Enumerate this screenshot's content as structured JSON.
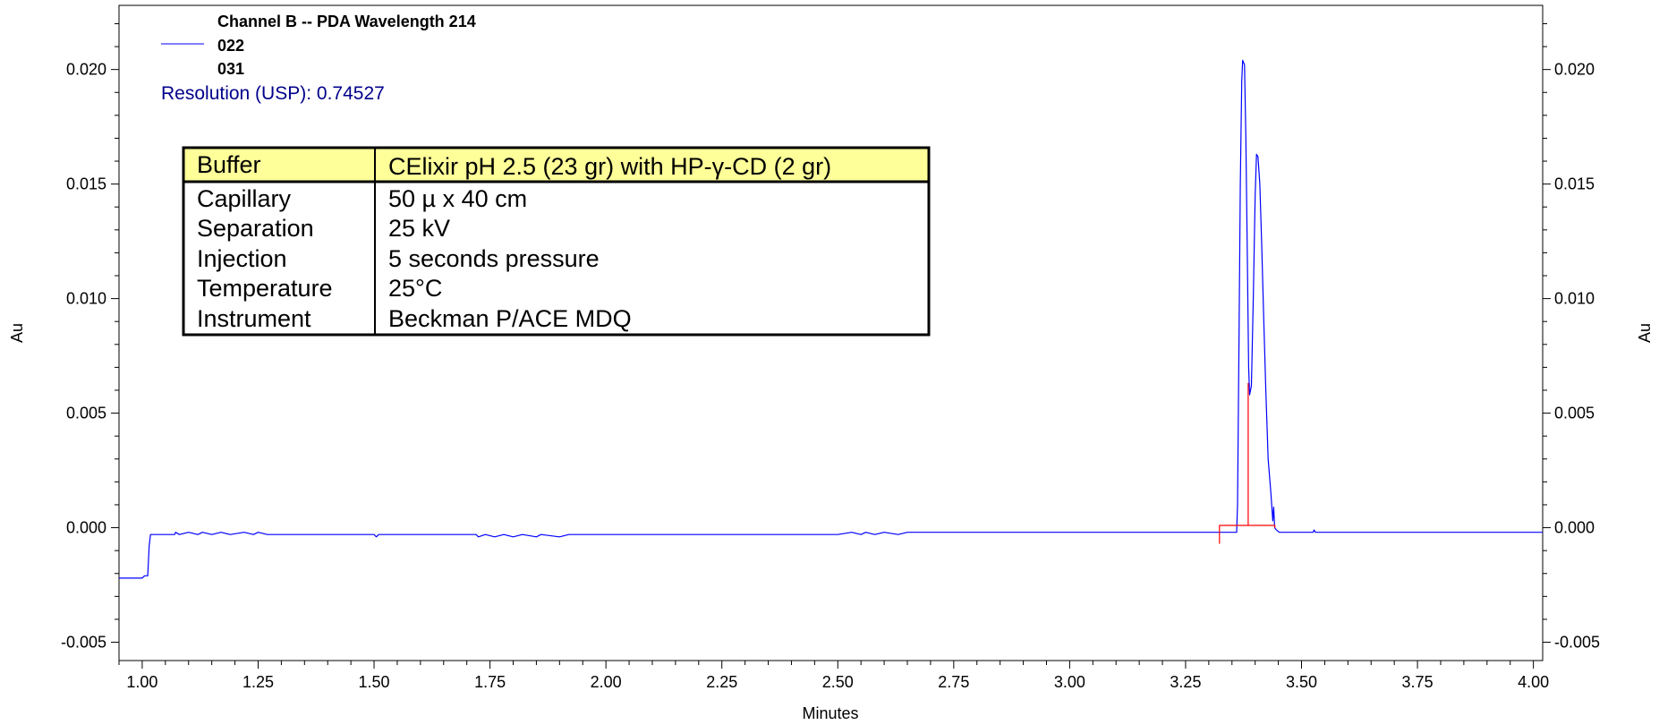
{
  "chart_data": {
    "type": "line",
    "title": "Channel B -- PDA Wavelength 214",
    "xlabel": "Minutes",
    "ylabel": "Au",
    "y2label": "Au",
    "xlim": [
      0.95,
      4.02
    ],
    "ylim": [
      -0.0058,
      0.0228
    ],
    "x_ticks": [
      {
        "v": 1.0,
        "label": "1.00"
      },
      {
        "v": 1.25,
        "label": "1.25"
      },
      {
        "v": 1.5,
        "label": "1.50"
      },
      {
        "v": 1.75,
        "label": "1.75"
      },
      {
        "v": 2.0,
        "label": "2.00"
      },
      {
        "v": 2.25,
        "label": "2.25"
      },
      {
        "v": 2.5,
        "label": "2.50"
      },
      {
        "v": 2.75,
        "label": "2.75"
      },
      {
        "v": 3.0,
        "label": "3.00"
      },
      {
        "v": 3.25,
        "label": "3.25"
      },
      {
        "v": 3.5,
        "label": "3.50"
      },
      {
        "v": 3.75,
        "label": "3.75"
      },
      {
        "v": 4.0,
        "label": "4.00"
      }
    ],
    "y_ticks": [
      {
        "v": 0.02,
        "label": "0.020"
      },
      {
        "v": 0.015,
        "label": "0.015"
      },
      {
        "v": 0.01,
        "label": "0.010"
      },
      {
        "v": 0.005,
        "label": "0.005"
      },
      {
        "v": 0.0,
        "label": "0.000"
      },
      {
        "v": -0.005,
        "label": "-0.005"
      }
    ],
    "legend_entries": [
      "022",
      "031"
    ],
    "annotation": "Resolution (USP): 0.74527",
    "series": [
      {
        "name": "022",
        "color": "#0000ff",
        "points": [
          [
            0.95,
            -0.0022
          ],
          [
            1.0,
            -0.0022
          ],
          [
            1.005,
            -0.0021
          ],
          [
            1.012,
            -0.0021
          ],
          [
            1.015,
            -0.0008
          ],
          [
            1.018,
            -0.0003
          ],
          [
            1.02,
            -0.0003
          ],
          [
            1.07,
            -0.0003
          ],
          [
            1.072,
            -0.0002
          ],
          [
            1.08,
            -0.0003
          ],
          [
            1.1,
            -0.0002
          ],
          [
            1.12,
            -0.0003
          ],
          [
            1.13,
            -0.0002
          ],
          [
            1.15,
            -0.0003
          ],
          [
            1.17,
            -0.0002
          ],
          [
            1.19,
            -0.0003
          ],
          [
            1.22,
            -0.0002
          ],
          [
            1.24,
            -0.0003
          ],
          [
            1.25,
            -0.0002
          ],
          [
            1.27,
            -0.0003
          ],
          [
            1.45,
            -0.0003
          ],
          [
            1.5,
            -0.0003
          ],
          [
            1.505,
            -0.0004
          ],
          [
            1.51,
            -0.0003
          ],
          [
            1.72,
            -0.0003
          ],
          [
            1.725,
            -0.0004
          ],
          [
            1.74,
            -0.0003
          ],
          [
            1.76,
            -0.0004
          ],
          [
            1.78,
            -0.0003
          ],
          [
            1.8,
            -0.0004
          ],
          [
            1.82,
            -0.0003
          ],
          [
            1.85,
            -0.0004
          ],
          [
            1.86,
            -0.0003
          ],
          [
            1.9,
            -0.0004
          ],
          [
            1.92,
            -0.0003
          ],
          [
            2.5,
            -0.0003
          ],
          [
            2.53,
            -0.0002
          ],
          [
            2.55,
            -0.0003
          ],
          [
            2.56,
            -0.0002
          ],
          [
            2.58,
            -0.0003
          ],
          [
            2.6,
            -0.0002
          ],
          [
            2.63,
            -0.0003
          ],
          [
            2.65,
            -0.0002
          ],
          [
            2.67,
            -0.0002
          ],
          [
            3.0,
            -0.0002
          ],
          [
            3.3,
            -0.0002
          ],
          [
            3.33,
            -0.0002
          ],
          [
            3.36,
            -0.0002
          ],
          [
            3.362,
            0.001
          ],
          [
            3.365,
            0.008
          ],
          [
            3.368,
            0.015
          ],
          [
            3.371,
            0.0195
          ],
          [
            3.373,
            0.0204
          ],
          [
            3.377,
            0.0202
          ],
          [
            3.38,
            0.017
          ],
          [
            3.383,
            0.012
          ],
          [
            3.386,
            0.007
          ],
          [
            3.388,
            0.0058
          ],
          [
            3.392,
            0.0062
          ],
          [
            3.396,
            0.01
          ],
          [
            3.4,
            0.0145
          ],
          [
            3.403,
            0.0163
          ],
          [
            3.406,
            0.0162
          ],
          [
            3.41,
            0.015
          ],
          [
            3.414,
            0.0125
          ],
          [
            3.418,
            0.0095
          ],
          [
            3.423,
            0.006
          ],
          [
            3.428,
            0.003
          ],
          [
            3.434,
            0.0015
          ],
          [
            3.438,
            0.0003
          ],
          [
            3.44,
            0.0009
          ],
          [
            3.442,
            0.0
          ],
          [
            3.446,
            -0.0001
          ],
          [
            3.452,
            -0.0002
          ],
          [
            3.5,
            -0.0002
          ],
          [
            3.525,
            -0.0002
          ],
          [
            3.527,
            -0.0001
          ],
          [
            3.53,
            -0.0002
          ],
          [
            3.75,
            -0.0002
          ],
          [
            4.02,
            -0.0002
          ]
        ]
      },
      {
        "name": "031",
        "color": "#ff0000",
        "points": [
          [
            3.323,
            -0.0007
          ],
          [
            3.323,
            0.0001
          ],
          [
            3.372,
            0.0001
          ],
          [
            3.385,
            0.0001
          ],
          [
            3.385,
            0.0063
          ],
          [
            3.385,
            0.0001
          ],
          [
            3.4425,
            0.0001
          ],
          [
            3.4425,
            0.0
          ]
        ]
      }
    ]
  },
  "conditions_table": {
    "header": {
      "label": "Buffer",
      "value": "CElixir pH 2.5 (23 gr) with HP-γ-CD (2 gr)"
    },
    "rows": [
      {
        "label": "Capillary",
        "value": "50 µ x 40 cm"
      },
      {
        "label": "Separation",
        "value": "25 kV"
      },
      {
        "label": "Injection",
        "value": "5 seconds pressure"
      },
      {
        "label": "Temperature",
        "value": "25°C"
      },
      {
        "label": "Instrument",
        "value": "Beckman P/ACE MDQ"
      }
    ]
  },
  "colors": {
    "trace": "#0000ff",
    "integration": "#ff0000",
    "annotation": "#00008b",
    "table_header_fill": "#ffff99"
  }
}
